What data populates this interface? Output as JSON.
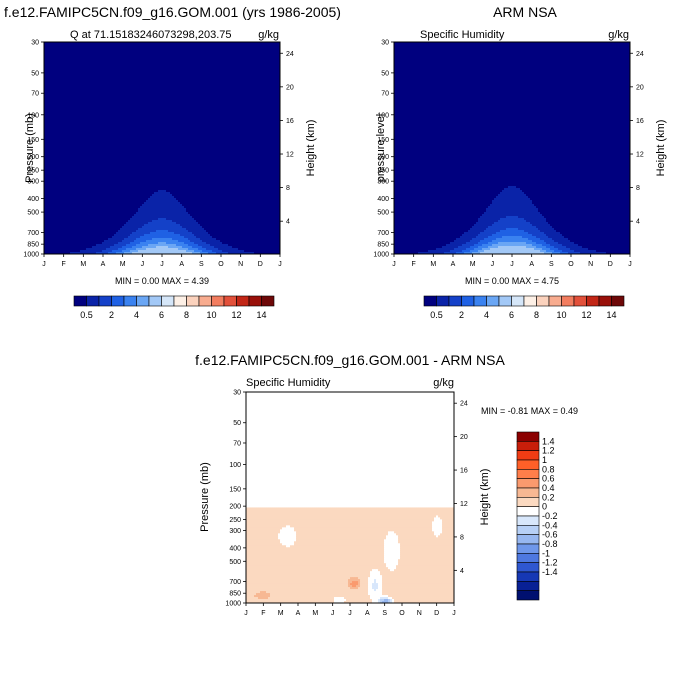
{
  "months": [
    "J",
    "F",
    "M",
    "A",
    "M",
    "J",
    "J",
    "A",
    "S",
    "O",
    "N",
    "D",
    "J"
  ],
  "pressure_ticks": [
    30,
    50,
    70,
    100,
    150,
    200,
    250,
    300,
    400,
    500,
    700,
    850,
    1000
  ],
  "height_ticks": [
    4,
    8,
    12,
    16,
    20,
    24
  ],
  "panels": [
    {
      "title": "f.e12.FAMIPC5CN.f09_g16.GOM.001 (yrs 1986-2005)",
      "left_label": "Q at 71.15183246073298,203.75",
      "right_label": "g/kg",
      "ylabel": "Pressure (mb)",
      "y2label": "Height (km)",
      "stats": "MIN =   0.00 MAX =   4.39",
      "min": 0.0,
      "max": 4.39
    },
    {
      "title": "ARM NSA",
      "left_label": "Specific Humidity",
      "right_label": "g/kg",
      "ylabel": "pressure level",
      "y2label": "Height (km)",
      "stats": "MIN =   0.00 MAX =   4.75",
      "min": 0.0,
      "max": 4.75
    },
    {
      "title": "f.e12.FAMIPC5CN.f09_g16.GOM.001 - ARM NSA",
      "left_label": "Specific Humidity",
      "right_label": "g/kg",
      "ylabel": "Pressure (mb)",
      "y2label": "Height (km)",
      "stats": "MIN =  -0.81 MAX =   0.49",
      "min": -0.81,
      "max": 0.49
    }
  ],
  "colorbar_abs": {
    "labels": [
      "0.5",
      "2",
      "4",
      "6",
      "8",
      "10",
      "12",
      "14"
    ],
    "colors": [
      "#00007f",
      "#0a23a8",
      "#1441c8",
      "#1f61e4",
      "#3a82f0",
      "#6aa6f4",
      "#a2c8f6",
      "#d5e6f8",
      "#fdf0e6",
      "#fbd2bd",
      "#f8ac8f",
      "#f27d5f",
      "#e2503a",
      "#c22616",
      "#99100a",
      "#6e0808"
    ]
  },
  "colorbar_diff": {
    "labels": [
      "1.4",
      "1.2",
      "1",
      "0.8",
      "0.6",
      "0.4",
      "0.2",
      "0",
      "-0.2",
      "-0.4",
      "-0.6",
      "-0.8",
      "-1",
      "-1.2",
      "-1.4"
    ],
    "colors": [
      "#8b0000",
      "#c81e0a",
      "#f03c14",
      "#ff6028",
      "#ff7e4a",
      "#fa9a6e",
      "#f7b893",
      "#fbd9c0",
      "#ffffff",
      "#d8e7fb",
      "#b7d0f6",
      "#97b7f0",
      "#6f97ea",
      "#4e78e0",
      "#2f57d0",
      "#1638b4",
      "#082095",
      "#001070"
    ]
  },
  "chart_data": [
    {
      "type": "heatmap",
      "title": "f.e12.FAMIPC5CN.f09_g16.GOM.001 (yrs 1986-2005)",
      "xlabel": "",
      "ylabel": "Pressure (mb)",
      "y2label": "Height (km)",
      "x": [
        "J",
        "F",
        "M",
        "A",
        "M",
        "J",
        "J",
        "A",
        "S",
        "O",
        "N",
        "D",
        "J"
      ],
      "y_pressure_mb": [
        30,
        1000
      ],
      "units": "g/kg",
      "min": 0.0,
      "max": 4.39,
      "features": [
        {
          "desc": "summer moisture dome",
          "peak_month": "Jul",
          "top_pressure_mb": 450,
          "peak_value": 4.39
        }
      ]
    },
    {
      "type": "heatmap",
      "title": "ARM NSA",
      "ylabel": "pressure level",
      "y2label": "Height (km)",
      "x": [
        "J",
        "F",
        "M",
        "A",
        "M",
        "J",
        "J",
        "A",
        "S",
        "O",
        "N",
        "D",
        "J"
      ],
      "y_pressure_mb": [
        30,
        1000
      ],
      "units": "g/kg",
      "min": 0.0,
      "max": 4.75,
      "features": [
        {
          "desc": "summer moisture dome",
          "peak_month": "Jul",
          "top_pressure_mb": 450,
          "peak_value": 4.75
        }
      ]
    },
    {
      "type": "heatmap",
      "title": "f.e12.FAMIPC5CN.f09_g16.GOM.001 - ARM NSA",
      "ylabel": "Pressure (mb)",
      "y2label": "Height (km)",
      "x": [
        "J",
        "F",
        "M",
        "A",
        "M",
        "J",
        "J",
        "A",
        "S",
        "O",
        "N",
        "D",
        "J"
      ],
      "y_pressure_mb": [
        30,
        1000
      ],
      "units": "g/kg",
      "min": -0.81,
      "max": 0.49,
      "features": [
        {
          "desc": "positive anomaly",
          "month": "Jul",
          "pressure_mb": 720,
          "value": 0.49
        },
        {
          "desc": "negative anomaly",
          "month": "Sep",
          "pressure_mb": 950,
          "value": -0.81
        }
      ]
    }
  ]
}
